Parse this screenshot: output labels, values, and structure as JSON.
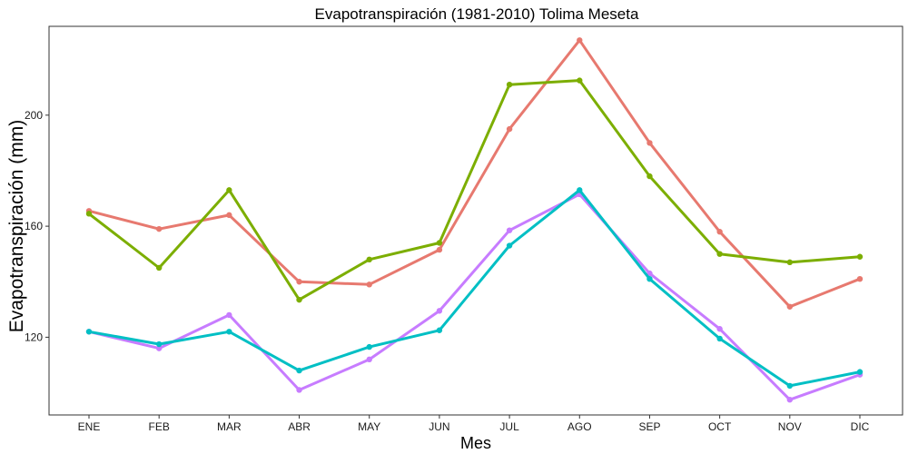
{
  "chart_data": {
    "type": "line",
    "title": "Evapotranspiración (1981-2010)  Tolima Meseta",
    "xlabel": "Mes",
    "ylabel": "Evapotranspiración (mm)",
    "categories": [
      "ENE",
      "FEB",
      "MAR",
      "ABR",
      "MAY",
      "JUN",
      "JUL",
      "AGO",
      "SEP",
      "OCT",
      "NOV",
      "DIC"
    ],
    "yticks": [
      120,
      160,
      200
    ],
    "ylim": [
      92,
      232
    ],
    "grid": false,
    "legend": "none",
    "series": [
      {
        "color": "#E7796F",
        "values": [
          165.5,
          159,
          164,
          140,
          139,
          151.5,
          195,
          227,
          190,
          158,
          131,
          141
        ]
      },
      {
        "color": "#7CAE00",
        "values": [
          164.5,
          145,
          173,
          133.5,
          148,
          154,
          211,
          212.5,
          178,
          150,
          147,
          149
        ]
      },
      {
        "color": "#C77CFF",
        "values": [
          122,
          116,
          128,
          101,
          112,
          129.5,
          158.5,
          171.5,
          143,
          123,
          97.5,
          106.5
        ]
      },
      {
        "color": "#00BFC4",
        "values": [
          122,
          117.5,
          122,
          108,
          116.5,
          122.5,
          153,
          173,
          141,
          119.5,
          102.5,
          107.5
        ]
      }
    ]
  }
}
